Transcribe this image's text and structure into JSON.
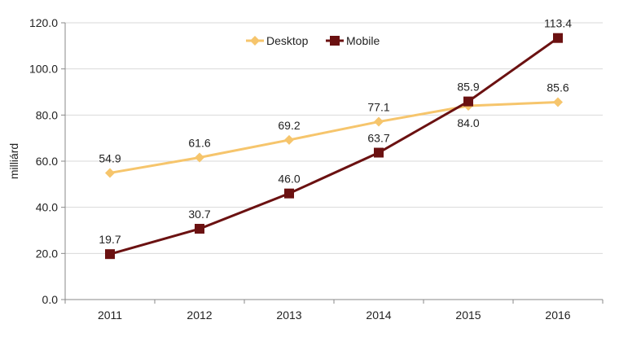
{
  "chart_data": {
    "type": "line",
    "title": "",
    "xlabel": "",
    "ylabel": "milliárd",
    "categories": [
      "2011",
      "2012",
      "2013",
      "2014",
      "2015",
      "2016"
    ],
    "ylim": [
      0,
      120
    ],
    "yticks": [
      "0.0",
      "20.0",
      "40.0",
      "60.0",
      "80.0",
      "100.0",
      "120.0"
    ],
    "grid": true,
    "legend_position": "top-center",
    "series": [
      {
        "name": "Desktop",
        "values": [
          54.9,
          61.6,
          69.2,
          77.1,
          84.0,
          85.6
        ],
        "labels": [
          "54.9",
          "61.6",
          "69.2",
          "77.1",
          "84.0",
          "85.6"
        ],
        "color": "#F6C56C",
        "marker": "diamond"
      },
      {
        "name": "Mobile",
        "values": [
          19.7,
          30.7,
          46.0,
          63.7,
          85.9,
          113.4
        ],
        "labels": [
          "19.7",
          "30.7",
          "46.0",
          "63.7",
          "85.9",
          "113.4"
        ],
        "color": "#6B1111",
        "marker": "square"
      }
    ]
  }
}
